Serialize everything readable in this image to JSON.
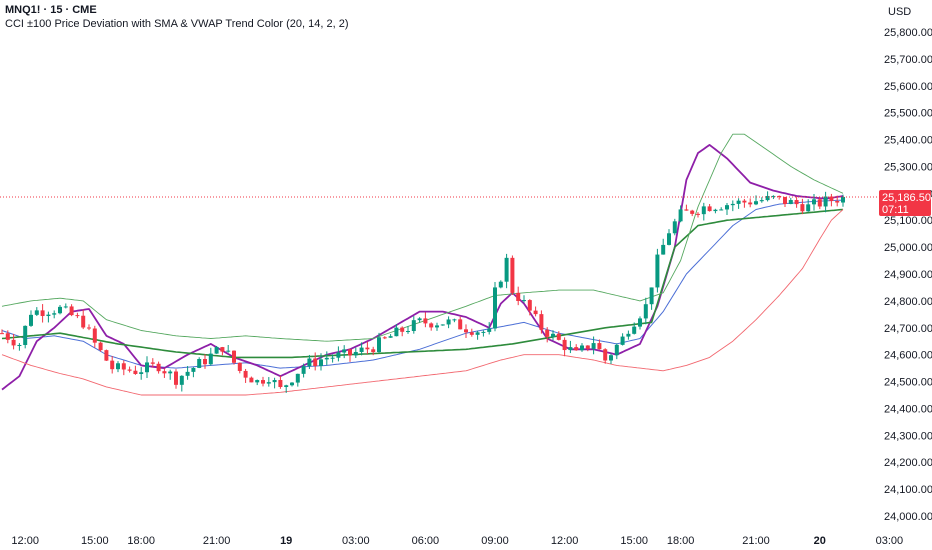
{
  "header": {
    "symbol_line": "MNQ1! · 15 · CME",
    "indicator_line": "CCI ±100 Price Deviation with SMA & VWAP Trend Color (20, 14, 2, 2)"
  },
  "currency": "USD",
  "last_price": {
    "value": 25186.5,
    "label": "25,186.50",
    "countdown": "07:11"
  },
  "colors": {
    "up": "#089981",
    "down": "#f23645",
    "sma": "#4c6fd6",
    "cci_line": "#8e1fa8",
    "vwap": "#2e8b3c",
    "upper_band": "#56a860",
    "lower_band": "#f2676f",
    "price_line": "#f23645"
  },
  "chart_data": {
    "type": "candlestick",
    "title": "MNQ1! · 15 · CME",
    "ylim": [
      23950,
      25950
    ],
    "y_ticks": [
      24000,
      24100,
      24200,
      24300,
      24400,
      24500,
      24600,
      24700,
      24800,
      24900,
      25000,
      25100,
      25200,
      25300,
      25400,
      25500,
      25600,
      25700,
      25800
    ],
    "y_tick_labels": [
      "24,000.00",
      "24,100.00",
      "24,200.00",
      "24,300.00",
      "24,400.00",
      "24,500.00",
      "24,600.00",
      "24,700.00",
      "24,800.00",
      "24,900.00",
      "25,000.00",
      "25,100.00",
      "25,200.00",
      "25,300.00",
      "25,400.00",
      "25,500.00",
      "25,600.00",
      "25,700.00",
      "25,800.00"
    ],
    "x_ticks": [
      {
        "label": "12:00",
        "i": 4,
        "bold": false
      },
      {
        "label": "15:00",
        "i": 16,
        "bold": false
      },
      {
        "label": "18:00",
        "i": 24,
        "bold": false
      },
      {
        "label": "21:00",
        "i": 37,
        "bold": false
      },
      {
        "label": "19",
        "i": 49,
        "bold": true
      },
      {
        "label": "03:00",
        "i": 61,
        "bold": false
      },
      {
        "label": "06:00",
        "i": 73,
        "bold": false
      },
      {
        "label": "09:00",
        "i": 85,
        "bold": false
      },
      {
        "label": "12:00",
        "i": 97,
        "bold": false
      },
      {
        "label": "15:00",
        "i": 109,
        "bold": false
      },
      {
        "label": "18:00",
        "i": 117,
        "bold": false
      },
      {
        "label": "21:00",
        "i": 130,
        "bold": false
      },
      {
        "label": "20",
        "i": 141,
        "bold": true
      },
      {
        "label": "03:00",
        "i": 153,
        "bold": false
      }
    ],
    "anchors": [
      [
        0,
        24680
      ],
      [
        3,
        24640
      ],
      [
        5,
        24760
      ],
      [
        10,
        24770
      ],
      [
        14,
        24720
      ],
      [
        16,
        24640
      ],
      [
        19,
        24550
      ],
      [
        23,
        24540
      ],
      [
        27,
        24560
      ],
      [
        30,
        24510
      ],
      [
        35,
        24580
      ],
      [
        38,
        24630
      ],
      [
        41,
        24540
      ],
      [
        44,
        24500
      ],
      [
        46,
        24520
      ],
      [
        48,
        24470
      ],
      [
        52,
        24560
      ],
      [
        56,
        24590
      ],
      [
        60,
        24600
      ],
      [
        64,
        24630
      ],
      [
        68,
        24680
      ],
      [
        72,
        24720
      ],
      [
        77,
        24720
      ],
      [
        80,
        24700
      ],
      [
        84,
        24680
      ],
      [
        85,
        24830
      ],
      [
        87,
        24950
      ],
      [
        88,
        24840
      ],
      [
        90,
        24790
      ],
      [
        93,
        24700
      ],
      [
        96,
        24650
      ],
      [
        99,
        24600
      ],
      [
        102,
        24650
      ],
      [
        104,
        24580
      ],
      [
        107,
        24660
      ],
      [
        108,
        24700
      ],
      [
        111,
        24780
      ],
      [
        113,
        24950
      ],
      [
        115,
        25060
      ],
      [
        117,
        25120
      ],
      [
        121,
        25150
      ],
      [
        125,
        25160
      ],
      [
        129,
        25170
      ],
      [
        133,
        25180
      ],
      [
        137,
        25160
      ],
      [
        139,
        25150
      ],
      [
        142,
        25170
      ],
      [
        145,
        25186
      ]
    ],
    "series": [
      {
        "name": "SMA",
        "color": "#4c6fd6",
        "width": 1,
        "points": [
          [
            0,
            24690
          ],
          [
            4,
            24660
          ],
          [
            9,
            24670
          ],
          [
            14,
            24650
          ],
          [
            18,
            24600
          ],
          [
            24,
            24560
          ],
          [
            30,
            24550
          ],
          [
            36,
            24560
          ],
          [
            42,
            24570
          ],
          [
            48,
            24550
          ],
          [
            56,
            24560
          ],
          [
            64,
            24580
          ],
          [
            72,
            24620
          ],
          [
            80,
            24680
          ],
          [
            85,
            24700
          ],
          [
            90,
            24720
          ],
          [
            96,
            24680
          ],
          [
            101,
            24660
          ],
          [
            106,
            24640
          ],
          [
            110,
            24660
          ],
          [
            114,
            24760
          ],
          [
            118,
            24900
          ],
          [
            122,
            24990
          ],
          [
            126,
            25080
          ],
          [
            130,
            25140
          ],
          [
            134,
            25160
          ],
          [
            140,
            25170
          ],
          [
            145,
            25175
          ]
        ]
      },
      {
        "name": "CCI Line",
        "color": "#8e1fa8",
        "width": 1.8,
        "points": [
          [
            0,
            24470
          ],
          [
            3,
            24520
          ],
          [
            6,
            24650
          ],
          [
            9,
            24700
          ],
          [
            12,
            24760
          ],
          [
            15,
            24770
          ],
          [
            18,
            24670
          ],
          [
            21,
            24640
          ],
          [
            24,
            24560
          ],
          [
            28,
            24550
          ],
          [
            32,
            24600
          ],
          [
            36,
            24640
          ],
          [
            40,
            24590
          ],
          [
            44,
            24560
          ],
          [
            48,
            24520
          ],
          [
            52,
            24560
          ],
          [
            56,
            24600
          ],
          [
            60,
            24620
          ],
          [
            64,
            24660
          ],
          [
            68,
            24710
          ],
          [
            72,
            24760
          ],
          [
            76,
            24760
          ],
          [
            80,
            24740
          ],
          [
            84,
            24700
          ],
          [
            86,
            24790
          ],
          [
            88,
            24830
          ],
          [
            90,
            24790
          ],
          [
            94,
            24660
          ],
          [
            98,
            24620
          ],
          [
            102,
            24620
          ],
          [
            106,
            24600
          ],
          [
            110,
            24640
          ],
          [
            113,
            24780
          ],
          [
            116,
            25000
          ],
          [
            118,
            25250
          ],
          [
            120,
            25350
          ],
          [
            122,
            25380
          ],
          [
            125,
            25330
          ],
          [
            129,
            25240
          ],
          [
            133,
            25210
          ],
          [
            137,
            25190
          ],
          [
            142,
            25180
          ],
          [
            145,
            25190
          ]
        ]
      },
      {
        "name": "VWAP",
        "color": "#2e8b3c",
        "width": 1.6,
        "points": [
          [
            0,
            24660
          ],
          [
            10,
            24680
          ],
          [
            20,
            24640
          ],
          [
            30,
            24610
          ],
          [
            40,
            24590
          ],
          [
            50,
            24590
          ],
          [
            60,
            24600
          ],
          [
            70,
            24610
          ],
          [
            80,
            24620
          ],
          [
            88,
            24640
          ],
          [
            96,
            24670
          ],
          [
            104,
            24700
          ],
          [
            112,
            24720
          ],
          [
            116,
            25000
          ],
          [
            120,
            25080
          ],
          [
            125,
            25100
          ],
          [
            130,
            25110
          ],
          [
            135,
            25120
          ],
          [
            140,
            25130
          ],
          [
            145,
            25140
          ]
        ]
      },
      {
        "name": "Upper Band",
        "color": "#56a860",
        "width": 0.9,
        "points": [
          [
            0,
            24780
          ],
          [
            5,
            24800
          ],
          [
            10,
            24810
          ],
          [
            14,
            24800
          ],
          [
            18,
            24730
          ],
          [
            24,
            24690
          ],
          [
            30,
            24670
          ],
          [
            36,
            24660
          ],
          [
            42,
            24670
          ],
          [
            48,
            24660
          ],
          [
            56,
            24650
          ],
          [
            64,
            24660
          ],
          [
            72,
            24720
          ],
          [
            80,
            24780
          ],
          [
            85,
            24820
          ],
          [
            90,
            24830
          ],
          [
            96,
            24840
          ],
          [
            102,
            24840
          ],
          [
            106,
            24820
          ],
          [
            110,
            24800
          ],
          [
            114,
            24830
          ],
          [
            117,
            24950
          ],
          [
            120,
            25150
          ],
          [
            122,
            25250
          ],
          [
            124,
            25350
          ],
          [
            126,
            25420
          ],
          [
            128,
            25420
          ],
          [
            132,
            25360
          ],
          [
            136,
            25300
          ],
          [
            140,
            25250
          ],
          [
            144,
            25210
          ],
          [
            145,
            25200
          ]
        ]
      },
      {
        "name": "Lower Band",
        "color": "#f2676f",
        "width": 0.9,
        "points": [
          [
            0,
            24600
          ],
          [
            5,
            24560
          ],
          [
            10,
            24530
          ],
          [
            14,
            24510
          ],
          [
            18,
            24480
          ],
          [
            24,
            24450
          ],
          [
            30,
            24450
          ],
          [
            36,
            24450
          ],
          [
            42,
            24450
          ],
          [
            48,
            24460
          ],
          [
            56,
            24480
          ],
          [
            64,
            24500
          ],
          [
            72,
            24520
          ],
          [
            80,
            24540
          ],
          [
            86,
            24580
          ],
          [
            90,
            24600
          ],
          [
            96,
            24600
          ],
          [
            102,
            24580
          ],
          [
            106,
            24560
          ],
          [
            110,
            24550
          ],
          [
            114,
            24540
          ],
          [
            118,
            24560
          ],
          [
            122,
            24590
          ],
          [
            126,
            24650
          ],
          [
            130,
            24730
          ],
          [
            134,
            24820
          ],
          [
            138,
            24920
          ],
          [
            141,
            25030
          ],
          [
            143,
            25100
          ],
          [
            145,
            25140
          ]
        ]
      }
    ],
    "last_value": 25186.5
  }
}
